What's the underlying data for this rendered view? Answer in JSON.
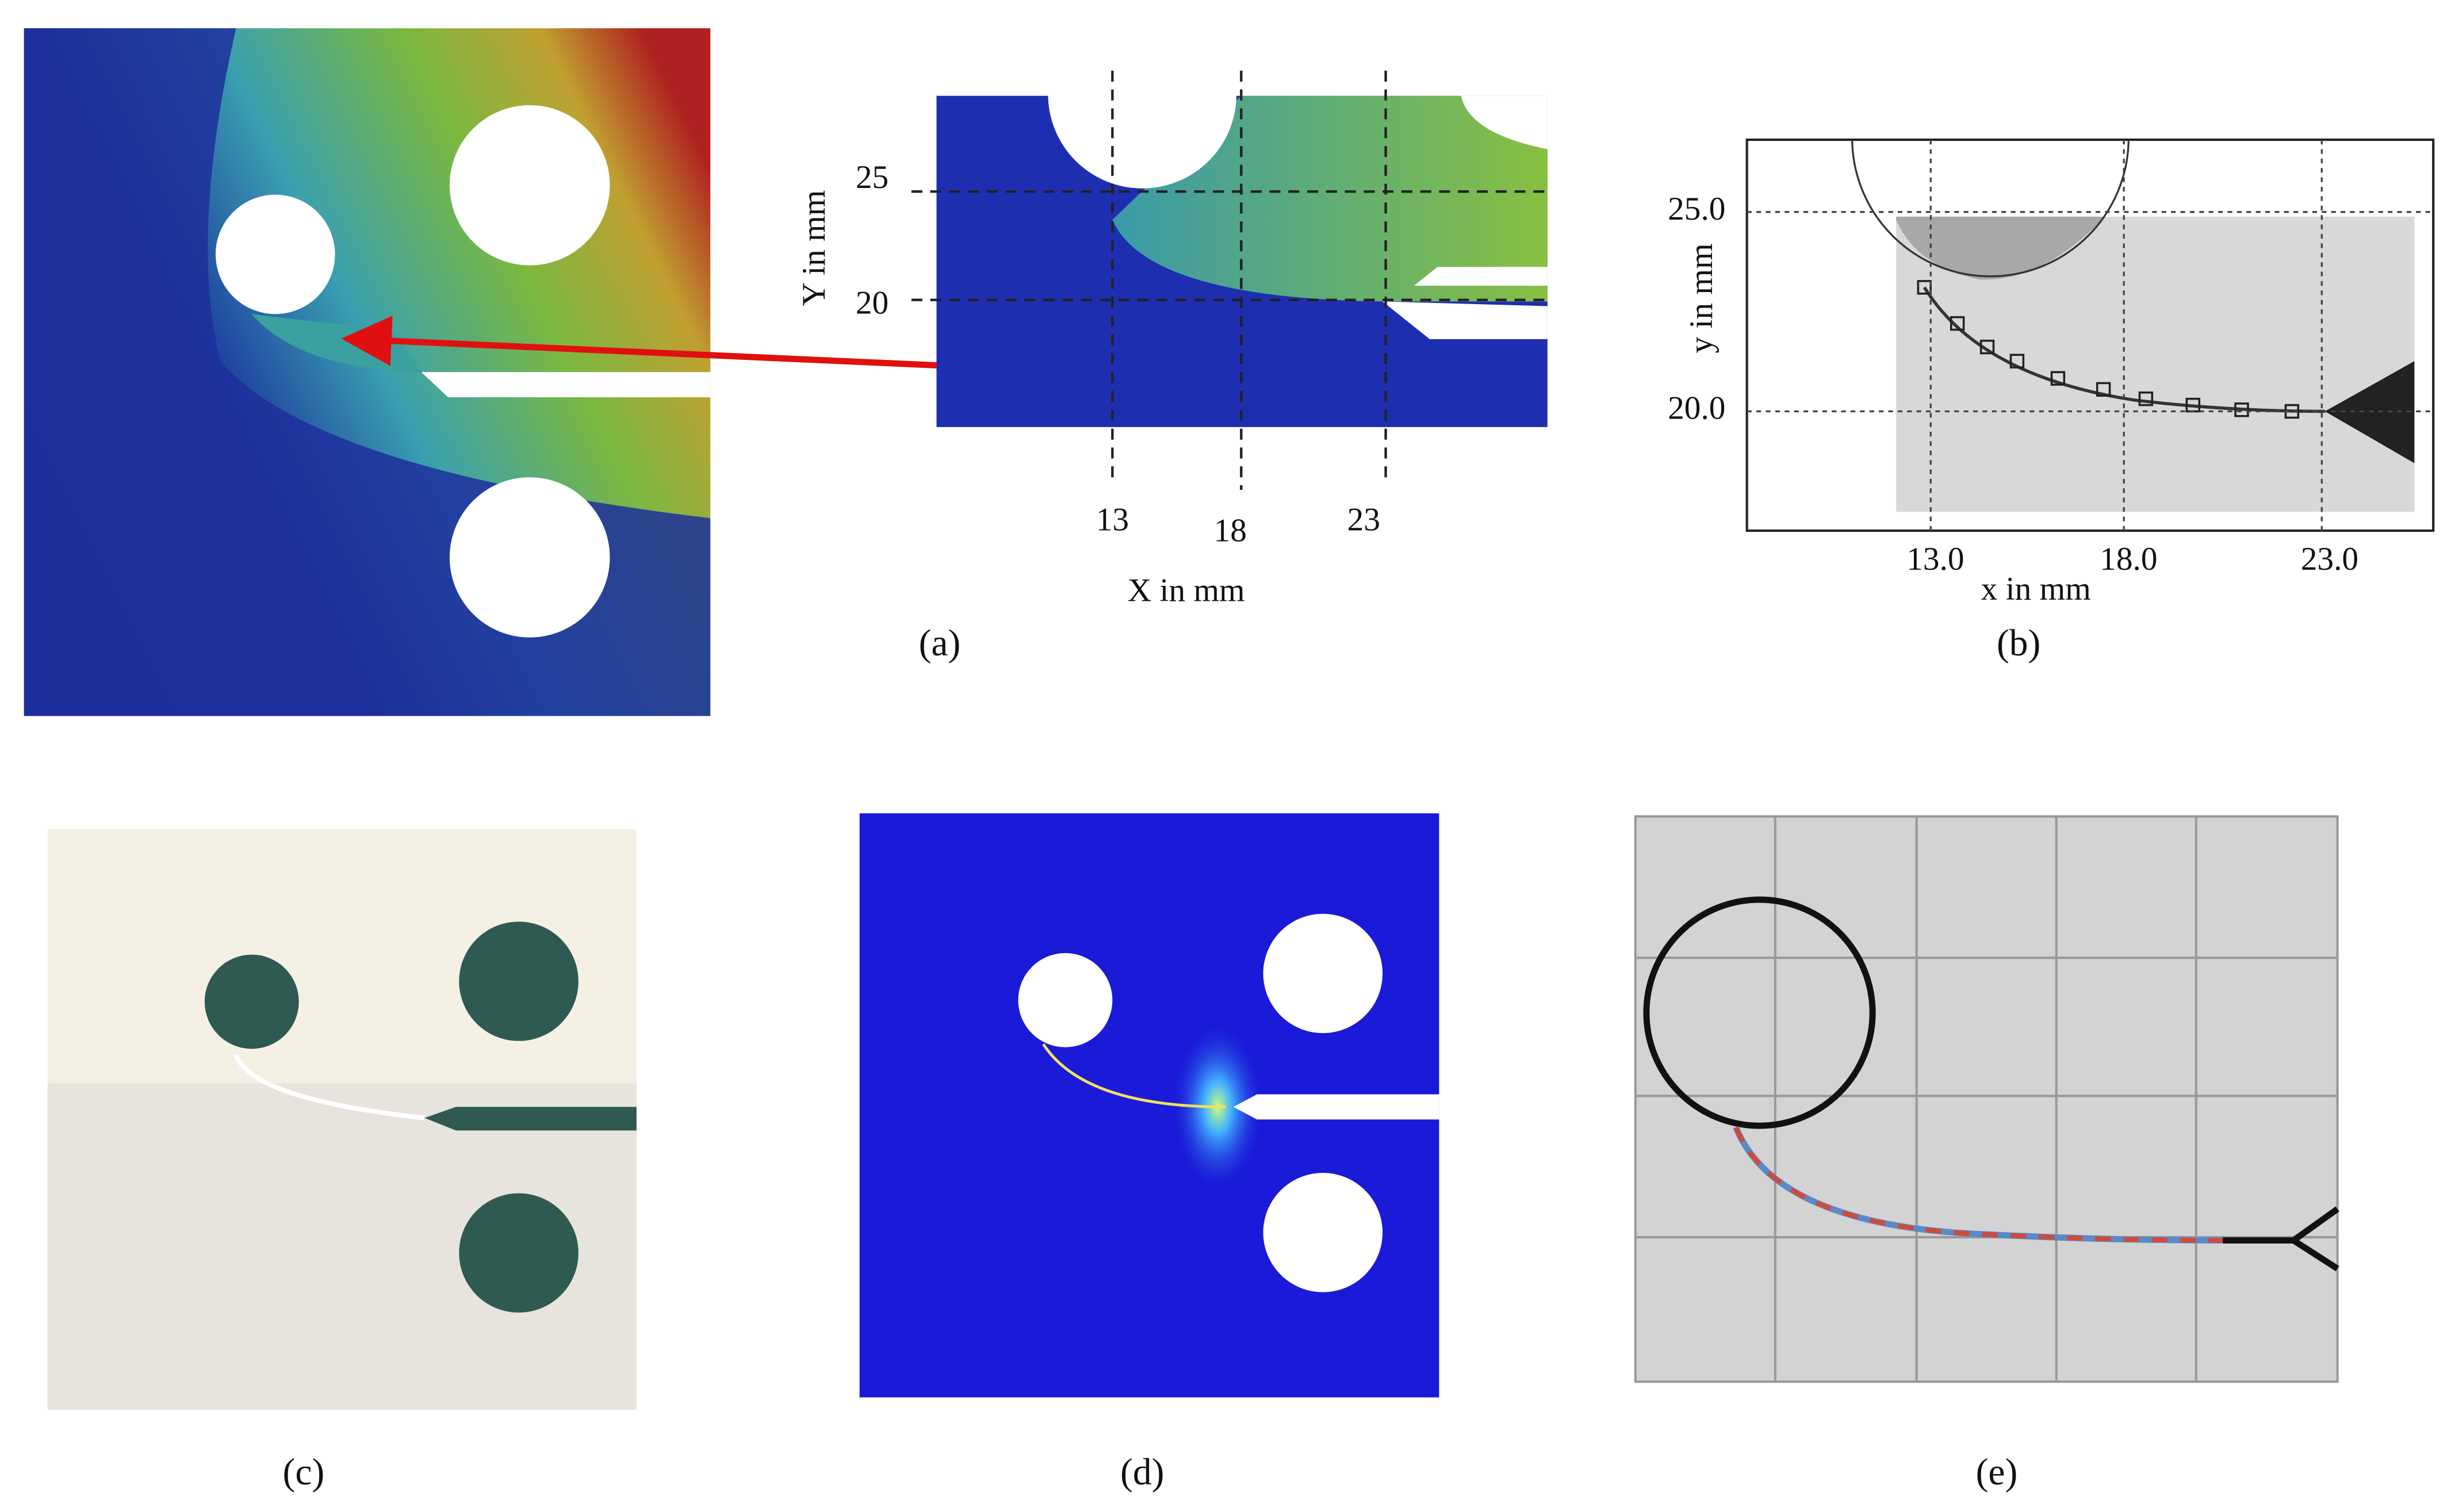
{
  "panels": {
    "a": {
      "label": "(a)",
      "y_axis_label": "Y in mm",
      "x_axis_label": "X in mm",
      "yticks": [
        "25",
        "20"
      ],
      "xticks": [
        "13",
        "18",
        "23"
      ]
    },
    "b": {
      "label": "(b)",
      "y_axis_label": "y in mm",
      "x_axis_label": "x in mm",
      "yticks": [
        "25.0",
        "20.0"
      ],
      "xticks": [
        "13.0",
        "18.0",
        "23.0"
      ]
    },
    "c": {
      "label": "(c)"
    },
    "d": {
      "label": "(d)"
    },
    "e": {
      "label": "(e)"
    }
  }
}
